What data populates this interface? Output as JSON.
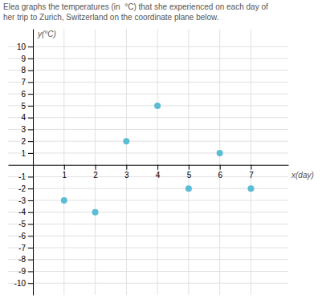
{
  "chart_data": {
    "type": "scatter",
    "title": "Elea graphs the temperatures (in  °C) that she experienced on each day of",
    "subtitle": "her trip to Zurich, Switzerland on the coordinate plane below.",
    "xlabel": "x(day)",
    "ylabel": "y(°C)",
    "x": [
      1,
      2,
      3,
      4,
      5,
      6,
      7
    ],
    "values": [
      -3,
      -4,
      2,
      5,
      -2,
      1,
      -2
    ],
    "color": "#5bbcd6",
    "xlim": [
      -0.8,
      8.2
    ],
    "ylim": [
      -11,
      11.5
    ],
    "xticks": [
      1,
      2,
      3,
      4,
      5,
      6,
      7
    ],
    "yticks": [
      -10,
      -9,
      -8,
      -7,
      -6,
      -5,
      -4,
      -3,
      -2,
      -1,
      1,
      2,
      3,
      4,
      5,
      6,
      7,
      8,
      9,
      10
    ],
    "grid": true
  }
}
